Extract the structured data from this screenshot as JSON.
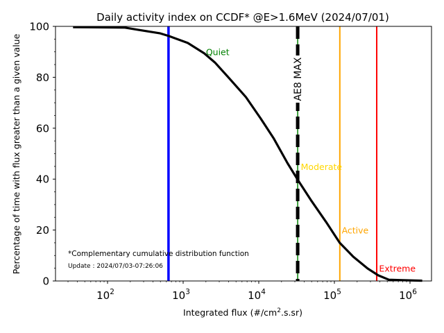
{
  "chart_data": {
    "type": "line",
    "title": "Daily activity index on CCDF* @E>1.6MeV (2024/07/01)",
    "xlabel_main": "Integrated flux (#/cm",
    "xlabel_sup": "2",
    "xlabel_tail": ".s.sr)",
    "ylabel": "Percentage of time with flux greater than a given value",
    "xscale": "log",
    "xlim": [
      20.5,
      1925000
    ],
    "ylim": [
      0,
      100
    ],
    "grid": false,
    "xticks": [
      {
        "value": 100,
        "base": "10",
        "exp": "2"
      },
      {
        "value": 1000,
        "base": "10",
        "exp": "3"
      },
      {
        "value": 10000,
        "base": "10",
        "exp": "4"
      },
      {
        "value": 100000,
        "base": "10",
        "exp": "5"
      },
      {
        "value": 1000000,
        "base": "10",
        "exp": "6"
      }
    ],
    "yticks": [
      0,
      20,
      40,
      60,
      80,
      100
    ],
    "series": [
      {
        "name": "CCDF",
        "color": "#000000",
        "x": [
          35,
          170,
          257,
          490,
          645,
          1150,
          1900,
          2630,
          4070,
          6760,
          10500,
          15800,
          24000,
          33100,
          50100,
          77600,
          117500,
          178000,
          275000,
          380000,
          525000,
          794000,
          1450000
        ],
        "y": [
          99.7,
          99.5,
          98.6,
          97.3,
          96.2,
          93.5,
          89.4,
          85.8,
          79.6,
          72.2,
          64.0,
          55.9,
          46.3,
          39.5,
          31.3,
          23.2,
          15.0,
          9.5,
          4.9,
          2.2,
          0.5,
          0.3,
          0.1
        ]
      }
    ],
    "vlines": [
      {
        "name": "quiet-threshold",
        "x": 640,
        "color": "#0000ff",
        "style": "solid"
      },
      {
        "name": "ae8-max",
        "x": 32700,
        "color": "#000000",
        "under_color": "#008000",
        "style": "dashed",
        "label": "AE8 MAX"
      },
      {
        "name": "active-threshold",
        "x": 118000,
        "color": "#ffa500",
        "style": "solid"
      },
      {
        "name": "extreme-threshold",
        "x": 363000,
        "color": "#ff0000",
        "style": "solid"
      }
    ],
    "annotations": [
      {
        "name": "quiet-label",
        "text": "Quiet",
        "color": "#008000",
        "x": 2000,
        "y": 90
      },
      {
        "name": "moderate-label",
        "text": "Moderate",
        "color": "#ffd700",
        "x": 36000,
        "y": 45
      },
      {
        "name": "active-label",
        "text": "Active",
        "color": "#ffa500",
        "x": 125000,
        "y": 20
      },
      {
        "name": "extreme-label",
        "text": "Extreme",
        "color": "#ff0000",
        "x": 390000,
        "y": 5
      }
    ],
    "footnote": "*Complementary cumulative distribution function",
    "update": "Update : 2024/07/03-07:26:06"
  }
}
